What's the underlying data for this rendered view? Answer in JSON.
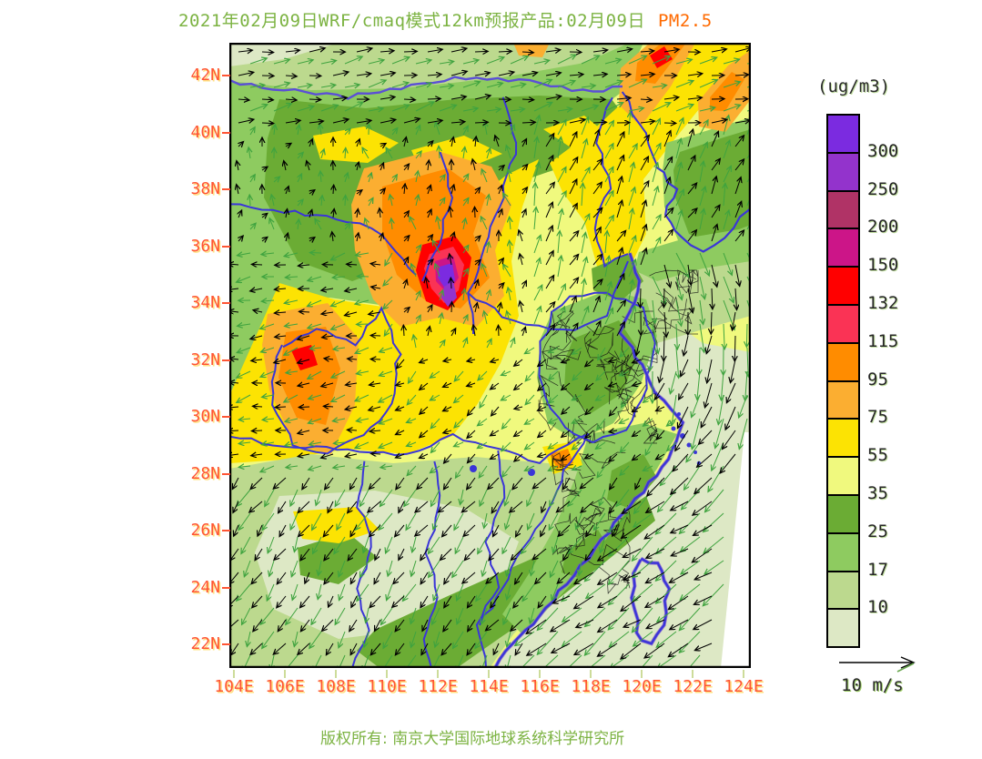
{
  "title": {
    "main": "2021年02月09日WRF/cmaq模式12km预报产品:02月09日",
    "highlight": "PM2.5"
  },
  "axes": {
    "lat_labels": [
      "42N",
      "40N",
      "38N",
      "36N",
      "34N",
      "32N",
      "30N",
      "28N",
      "26N",
      "24N",
      "22N"
    ],
    "lon_labels": [
      "104E",
      "106E",
      "108E",
      "110E",
      "112E",
      "114E",
      "116E",
      "118E",
      "120E",
      "122E",
      "124E"
    ]
  },
  "legend": {
    "unit": "(ug/m3)",
    "labels": [
      "300",
      "250",
      "200",
      "150",
      "132",
      "115",
      "95",
      "75",
      "55",
      "35",
      "25",
      "17",
      "10"
    ]
  },
  "wind_scale": {
    "label": "10 m/s"
  },
  "footer": {
    "copyright": "版权所有: 南京大学国际地球系统科学研究所"
  },
  "chart_data": {
    "type": "heatmap",
    "title": "2021年02月09日WRF/cmaq模式12km预报产品:02月09日 PM2.5",
    "variable": "PM2.5",
    "unit": "ug/m3",
    "x_axis": {
      "label_ticks": [
        "104E",
        "106E",
        "108E",
        "110E",
        "112E",
        "114E",
        "116E",
        "118E",
        "120E",
        "122E",
        "124E"
      ],
      "range_deg_east": [
        104,
        124
      ]
    },
    "y_axis": {
      "label_ticks": [
        "22N",
        "24N",
        "26N",
        "28N",
        "30N",
        "32N",
        "34N",
        "36N",
        "38N",
        "40N",
        "42N"
      ],
      "range_deg_north": [
        22,
        42
      ]
    },
    "levels": [
      10,
      17,
      25,
      35,
      55,
      75,
      95,
      115,
      132,
      150,
      200,
      250,
      300
    ],
    "colors": [
      "#7b2be0",
      "#9333cc",
      "#b03366",
      "#cc1588",
      "#ff0000",
      "#fa3355",
      "#ff8c00",
      "#fbae31",
      "#fce303",
      "#f0f97e",
      "#6bac34",
      "#8ecb60",
      "#bcd98e",
      "#dde8c5"
    ],
    "colors_order": "top-to-bottom of legend: >300 purple ... <10 pale green",
    "overlay": "wind vectors (black and green arrows), blue province boundaries, thin black county boundaries",
    "wind_reference_m_s": 10,
    "features": [
      {
        "region": "central China hotspot ~35N 112E",
        "pm25": ">300 purple core with 132-200 red/magenta ring"
      },
      {
        "region": "NE diagonal bands ~38-42N 117-124E",
        "pm25": "95-150 orange/red streaks"
      },
      {
        "region": "west Sichuan basin ~29-31N 104-106E",
        "pm25": "95-150 orange with small red spot"
      },
      {
        "region": "central-west plains 30-38N",
        "pm25": "55-95 yellow"
      },
      {
        "region": "north of 40N",
        "pm25": "17-35 green"
      },
      {
        "region": "Shandong / lower-Yangtze green patch ~32-37N 115-119E",
        "pm25": "17-35"
      },
      {
        "region": "south China 22-28N",
        "pm25": "10-25 light green"
      },
      {
        "region": "east sea / coastal waters",
        "pm25": "<17 pale green"
      }
    ]
  }
}
